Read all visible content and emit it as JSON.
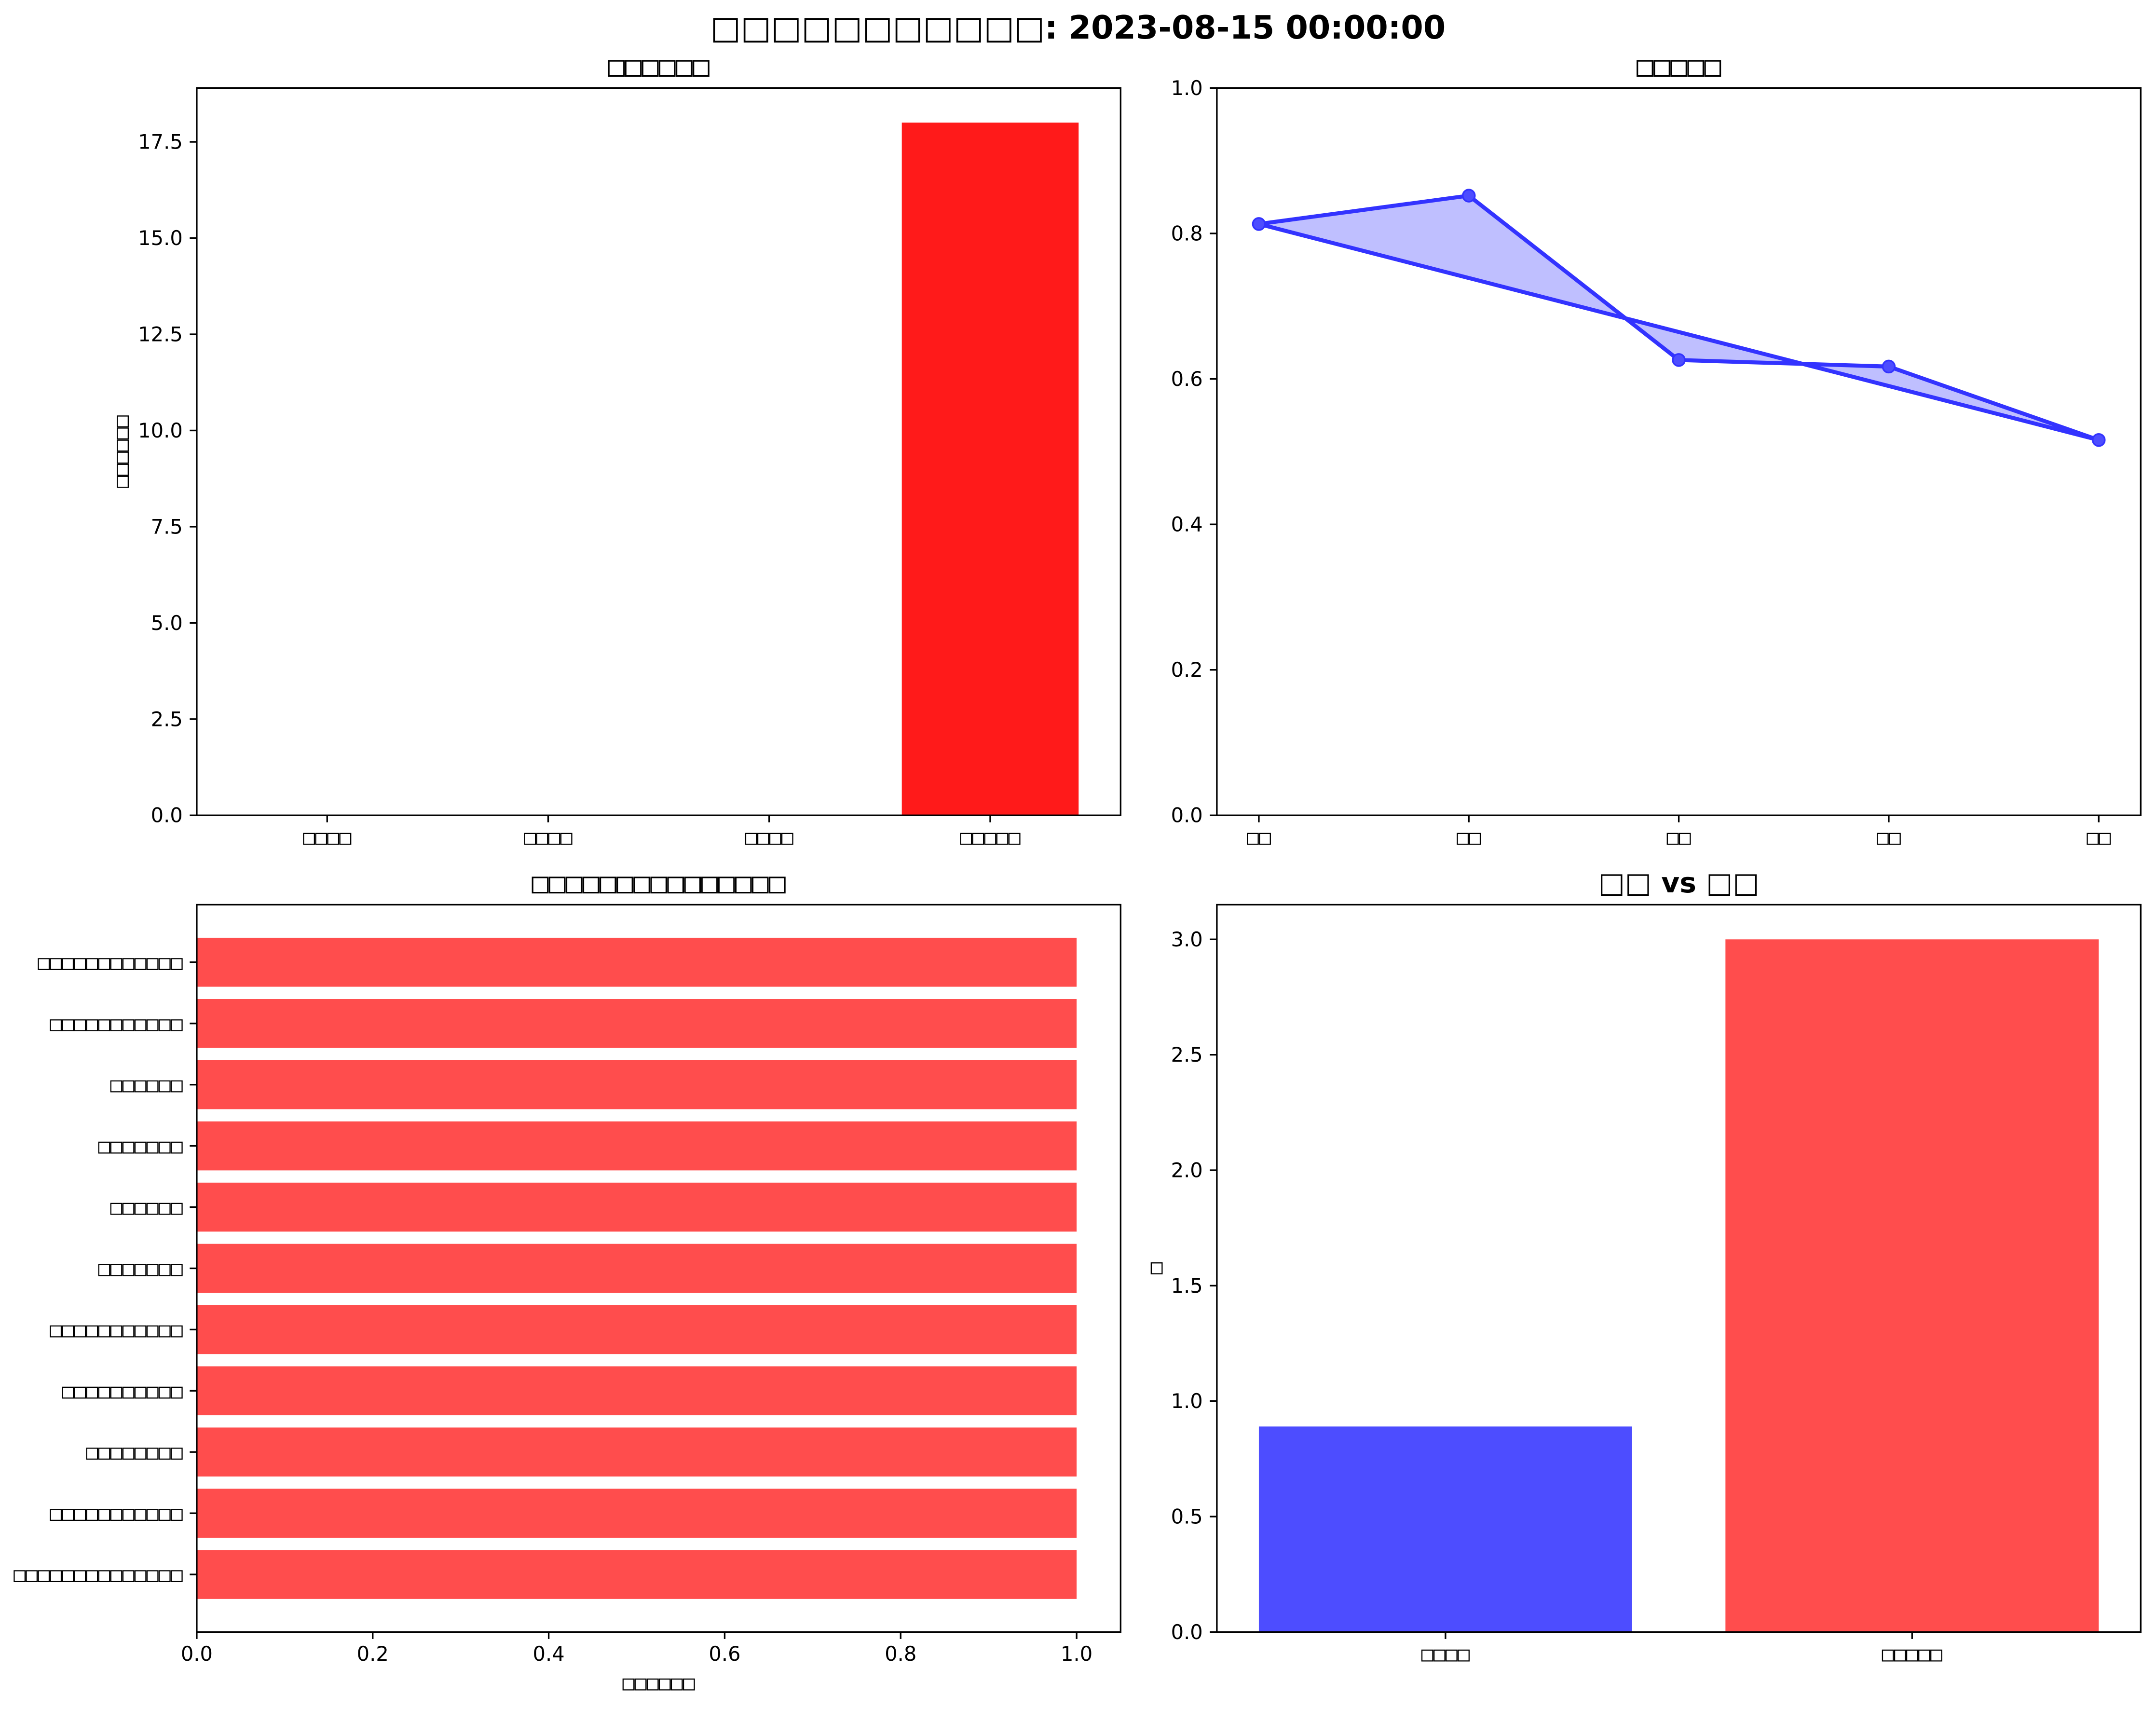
{
  "figure": {
    "suptitle": "□□□□□□□□□□□: 2023-08-15 00:00:00"
  },
  "chart_data": [
    {
      "type": "bar",
      "title": "□□□□□□",
      "ylabel": "□□□□□□",
      "categories": [
        "□□□□",
        "□□□□",
        "□□□□",
        "□□□□□"
      ],
      "values": [
        0,
        0,
        0,
        18
      ],
      "ylim": [
        0,
        18.9
      ],
      "yticks": [
        "0.0",
        "2.5",
        "5.0",
        "7.5",
        "10.0",
        "12.5",
        "15.0",
        "17.5"
      ],
      "color": "#ff1a1a",
      "grid": false
    },
    {
      "type": "line",
      "title": "□□□□□",
      "categories": [
        "□□",
        "□□",
        "□□",
        "□□",
        "□□"
      ],
      "values": [
        0.813,
        0.852,
        0.626,
        0.617,
        0.516
      ],
      "ylim": [
        0,
        1
      ],
      "yticks": [
        "0.0",
        "0.2",
        "0.4",
        "0.6",
        "0.8",
        "1.0"
      ],
      "closed": true,
      "line_color": "#3333ff",
      "fill_color": "#bfbfff",
      "marker_color": "#4d4dff",
      "grid": false
    },
    {
      "type": "bar",
      "orientation": "horizontal",
      "title": "□□□□□□□□□□□□□□□",
      "xlabel": "□□□□□□",
      "categories": [
        "□□□□□□□□□□□□",
        "□□□□□□□□□□□",
        "□□□□□□",
        "□□□□□□□",
        "□□□□□□",
        "□□□□□□□",
        "□□□□□□□□□□□",
        "□□□□□□□□□□",
        "□□□□□□□□",
        "□□□□□□□□□□□",
        "□□□□□□□□□□□□□□"
      ],
      "values": [
        1,
        1,
        1,
        1,
        1,
        1,
        1,
        1,
        1,
        1,
        1
      ],
      "xlim": [
        0,
        1.05
      ],
      "xticks": [
        "0.0",
        "0.2",
        "0.4",
        "0.6",
        "0.8",
        "1.0"
      ],
      "color": "#ff4d4d",
      "grid": false
    },
    {
      "type": "bar",
      "title": "□□ vs □□",
      "ylabel": "□",
      "categories": [
        "□□□□",
        "□□□□□"
      ],
      "values": [
        0.89,
        3.0
      ],
      "ylim": [
        0,
        3.15
      ],
      "yticks": [
        "0.0",
        "0.5",
        "1.0",
        "1.5",
        "2.0",
        "2.5",
        "3.0"
      ],
      "colors": [
        "#4d4dff",
        "#ff4d4d"
      ],
      "grid": false
    }
  ]
}
